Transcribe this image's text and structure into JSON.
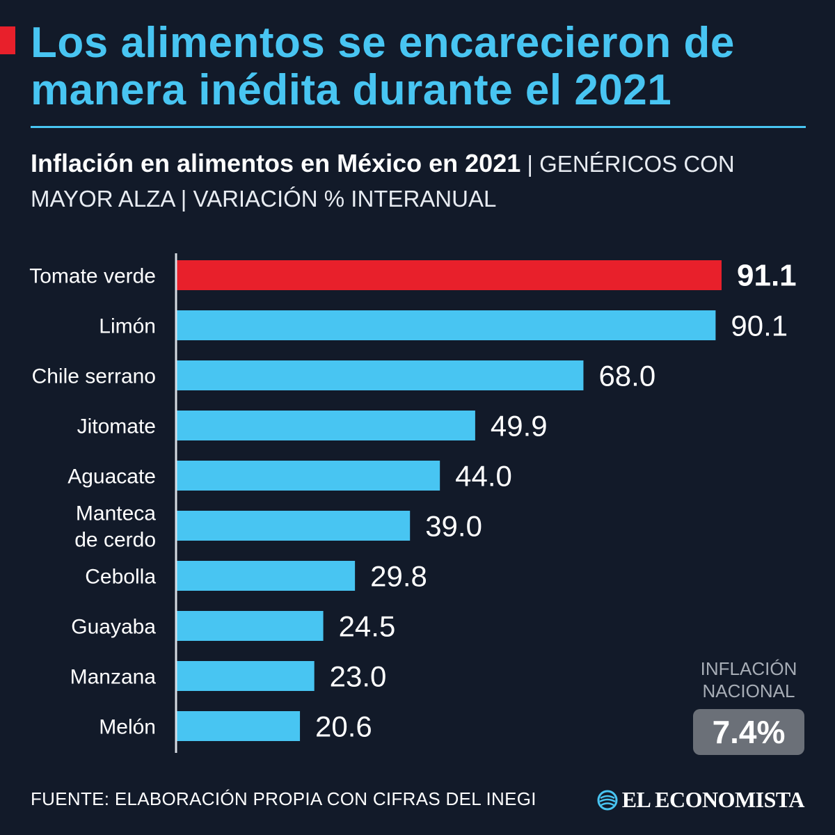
{
  "header": {
    "title": "Los alimentos se encarecieron de manera inédita durante el 2021",
    "subtitle_strong": "Inflación en alimentos en México en 2021",
    "subtitle_rest": " | GENÉRICOS CON MAYOR ALZA | VARIACIÓN % INTERANUAL"
  },
  "chart_data": {
    "type": "bar",
    "orientation": "horizontal",
    "categories": [
      [
        "Tomate verde"
      ],
      [
        "Limón"
      ],
      [
        "Chile serrano"
      ],
      [
        "Jitomate"
      ],
      [
        "Aguacate"
      ],
      [
        "Manteca",
        "de cerdo"
      ],
      [
        "Cebolla"
      ],
      [
        "Guayaba"
      ],
      [
        "Manzana"
      ],
      [
        "Melón"
      ]
    ],
    "values": [
      91.1,
      90.1,
      68.0,
      49.9,
      44.0,
      39.0,
      29.8,
      24.5,
      23.0,
      20.6
    ],
    "value_labels": [
      "91.1",
      "90.1",
      "68.0",
      "49.9",
      "44.0",
      "39.0",
      "29.8",
      "24.5",
      "23.0",
      "20.6"
    ],
    "highlight_index": 0,
    "colors": {
      "bar": "#48c5f2",
      "highlight": "#e8202b"
    }
  },
  "national_inflation": {
    "label": "INFLACIÓN NACIONAL",
    "value": "7.4%"
  },
  "footer": {
    "source": "FUENTE: ELABORACIÓN PROPIA CON CIFRAS DEL INEGI",
    "brand": "EL ECONOMISTA"
  }
}
